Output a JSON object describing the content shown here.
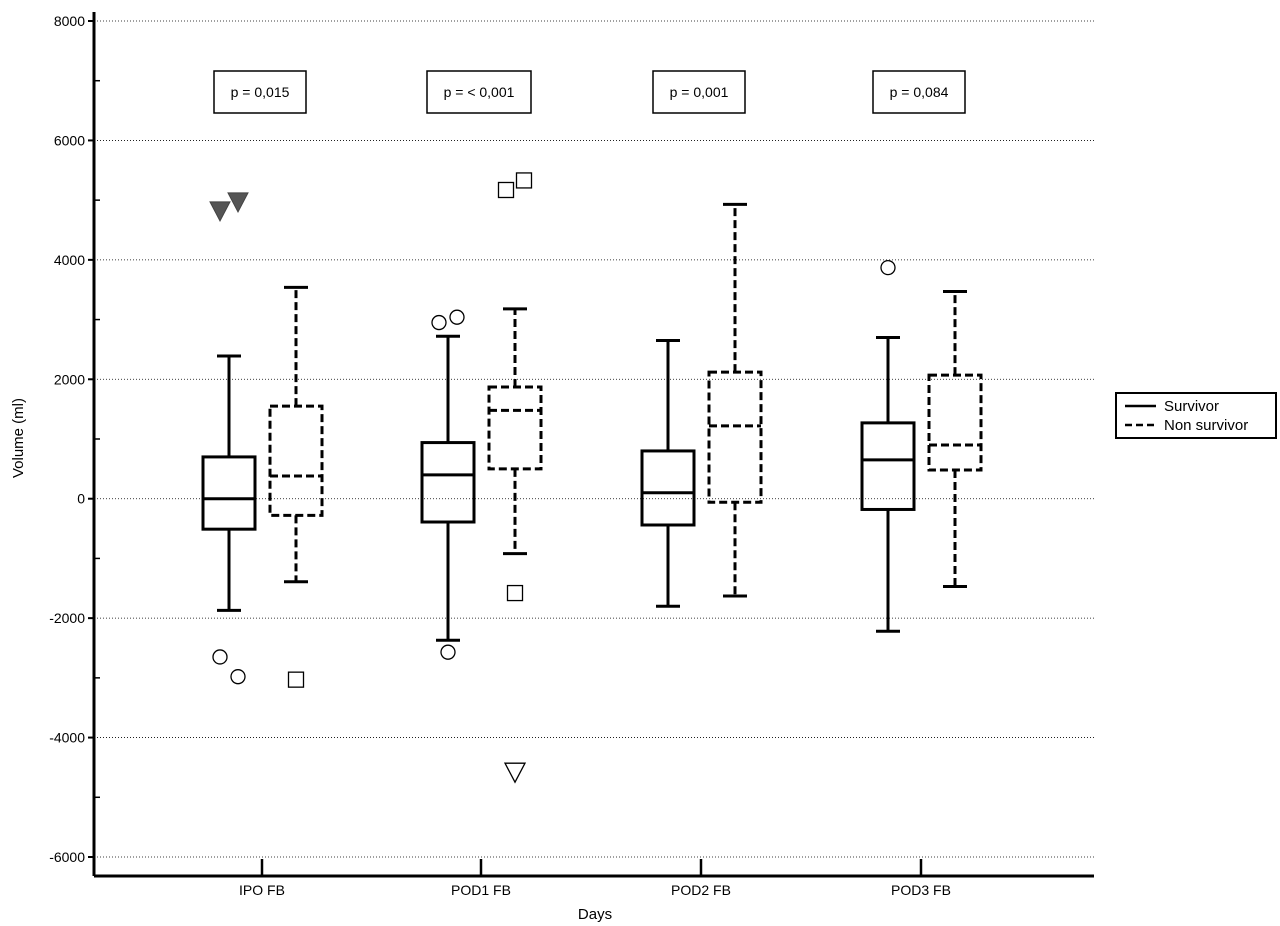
{
  "chart_data": {
    "type": "boxplot",
    "xlabel": "Days",
    "ylabel": "Volume (ml)",
    "ylim": [
      -6000,
      8000
    ],
    "yticks": [
      -6000,
      -4000,
      -2000,
      0,
      2000,
      4000,
      6000,
      8000
    ],
    "ytick_labels": [
      "-6000",
      "-4000",
      "-2000",
      "0",
      "2000",
      "4000",
      "6000",
      "8000"
    ],
    "grid": "horizontal dotted",
    "legend_position": "right",
    "categories": [
      "IPO FB",
      "POD1 FB",
      "POD2 FB",
      "POD3 FB"
    ],
    "p_values": [
      "p = 0,015",
      "p = < 0,001",
      "p = 0,001",
      "p = 0,084"
    ],
    "series": [
      {
        "name": "Survivor",
        "line_style": "solid",
        "boxes": [
          {
            "category": "IPO FB",
            "whisker_low": -1870,
            "q1": -510,
            "median": 0,
            "q3": 700,
            "whisker_high": 2390,
            "outliers": [
              {
                "value": -2650,
                "marker": "circle"
              },
              {
                "value": -2980,
                "marker": "circle"
              },
              {
                "value": 4820,
                "marker": "filled-triangle-down"
              },
              {
                "value": 4970,
                "marker": "filled-triangle-down"
              }
            ]
          },
          {
            "category": "POD1 FB",
            "whisker_low": -2370,
            "q1": -390,
            "median": 400,
            "q3": 940,
            "whisker_high": 2720,
            "outliers": [
              {
                "value": 2950,
                "marker": "circle"
              },
              {
                "value": 3040,
                "marker": "circle"
              },
              {
                "value": -2570,
                "marker": "circle"
              }
            ]
          },
          {
            "category": "POD2 FB",
            "whisker_low": -1800,
            "q1": -440,
            "median": 100,
            "q3": 800,
            "whisker_high": 2650,
            "outliers": []
          },
          {
            "category": "POD3 FB",
            "whisker_low": -2220,
            "q1": -180,
            "median": 650,
            "q3": 1270,
            "whisker_high": 2700,
            "outliers": [
              {
                "value": 3870,
                "marker": "circle"
              }
            ]
          }
        ]
      },
      {
        "name": "Non survivor",
        "line_style": "dashed",
        "boxes": [
          {
            "category": "IPO FB",
            "whisker_low": -1390,
            "q1": -280,
            "median": 380,
            "q3": 1550,
            "whisker_high": 3540,
            "outliers": [
              {
                "value": -3030,
                "marker": "square"
              }
            ]
          },
          {
            "category": "POD1 FB",
            "whisker_low": -920,
            "q1": 500,
            "median": 1480,
            "q3": 1870,
            "whisker_high": 3180,
            "outliers": [
              {
                "value": 5170,
                "marker": "square"
              },
              {
                "value": 5330,
                "marker": "square"
              },
              {
                "value": -1580,
                "marker": "square"
              },
              {
                "value": -4580,
                "marker": "open-triangle-down"
              }
            ]
          },
          {
            "category": "POD2 FB",
            "whisker_low": -1630,
            "q1": -60,
            "median": 1220,
            "q3": 2120,
            "whisker_high": 4930,
            "outliers": []
          },
          {
            "category": "POD3 FB",
            "whisker_low": -1470,
            "q1": 480,
            "median": 900,
            "q3": 2070,
            "whisker_high": 3470,
            "outliers": []
          }
        ]
      }
    ]
  }
}
